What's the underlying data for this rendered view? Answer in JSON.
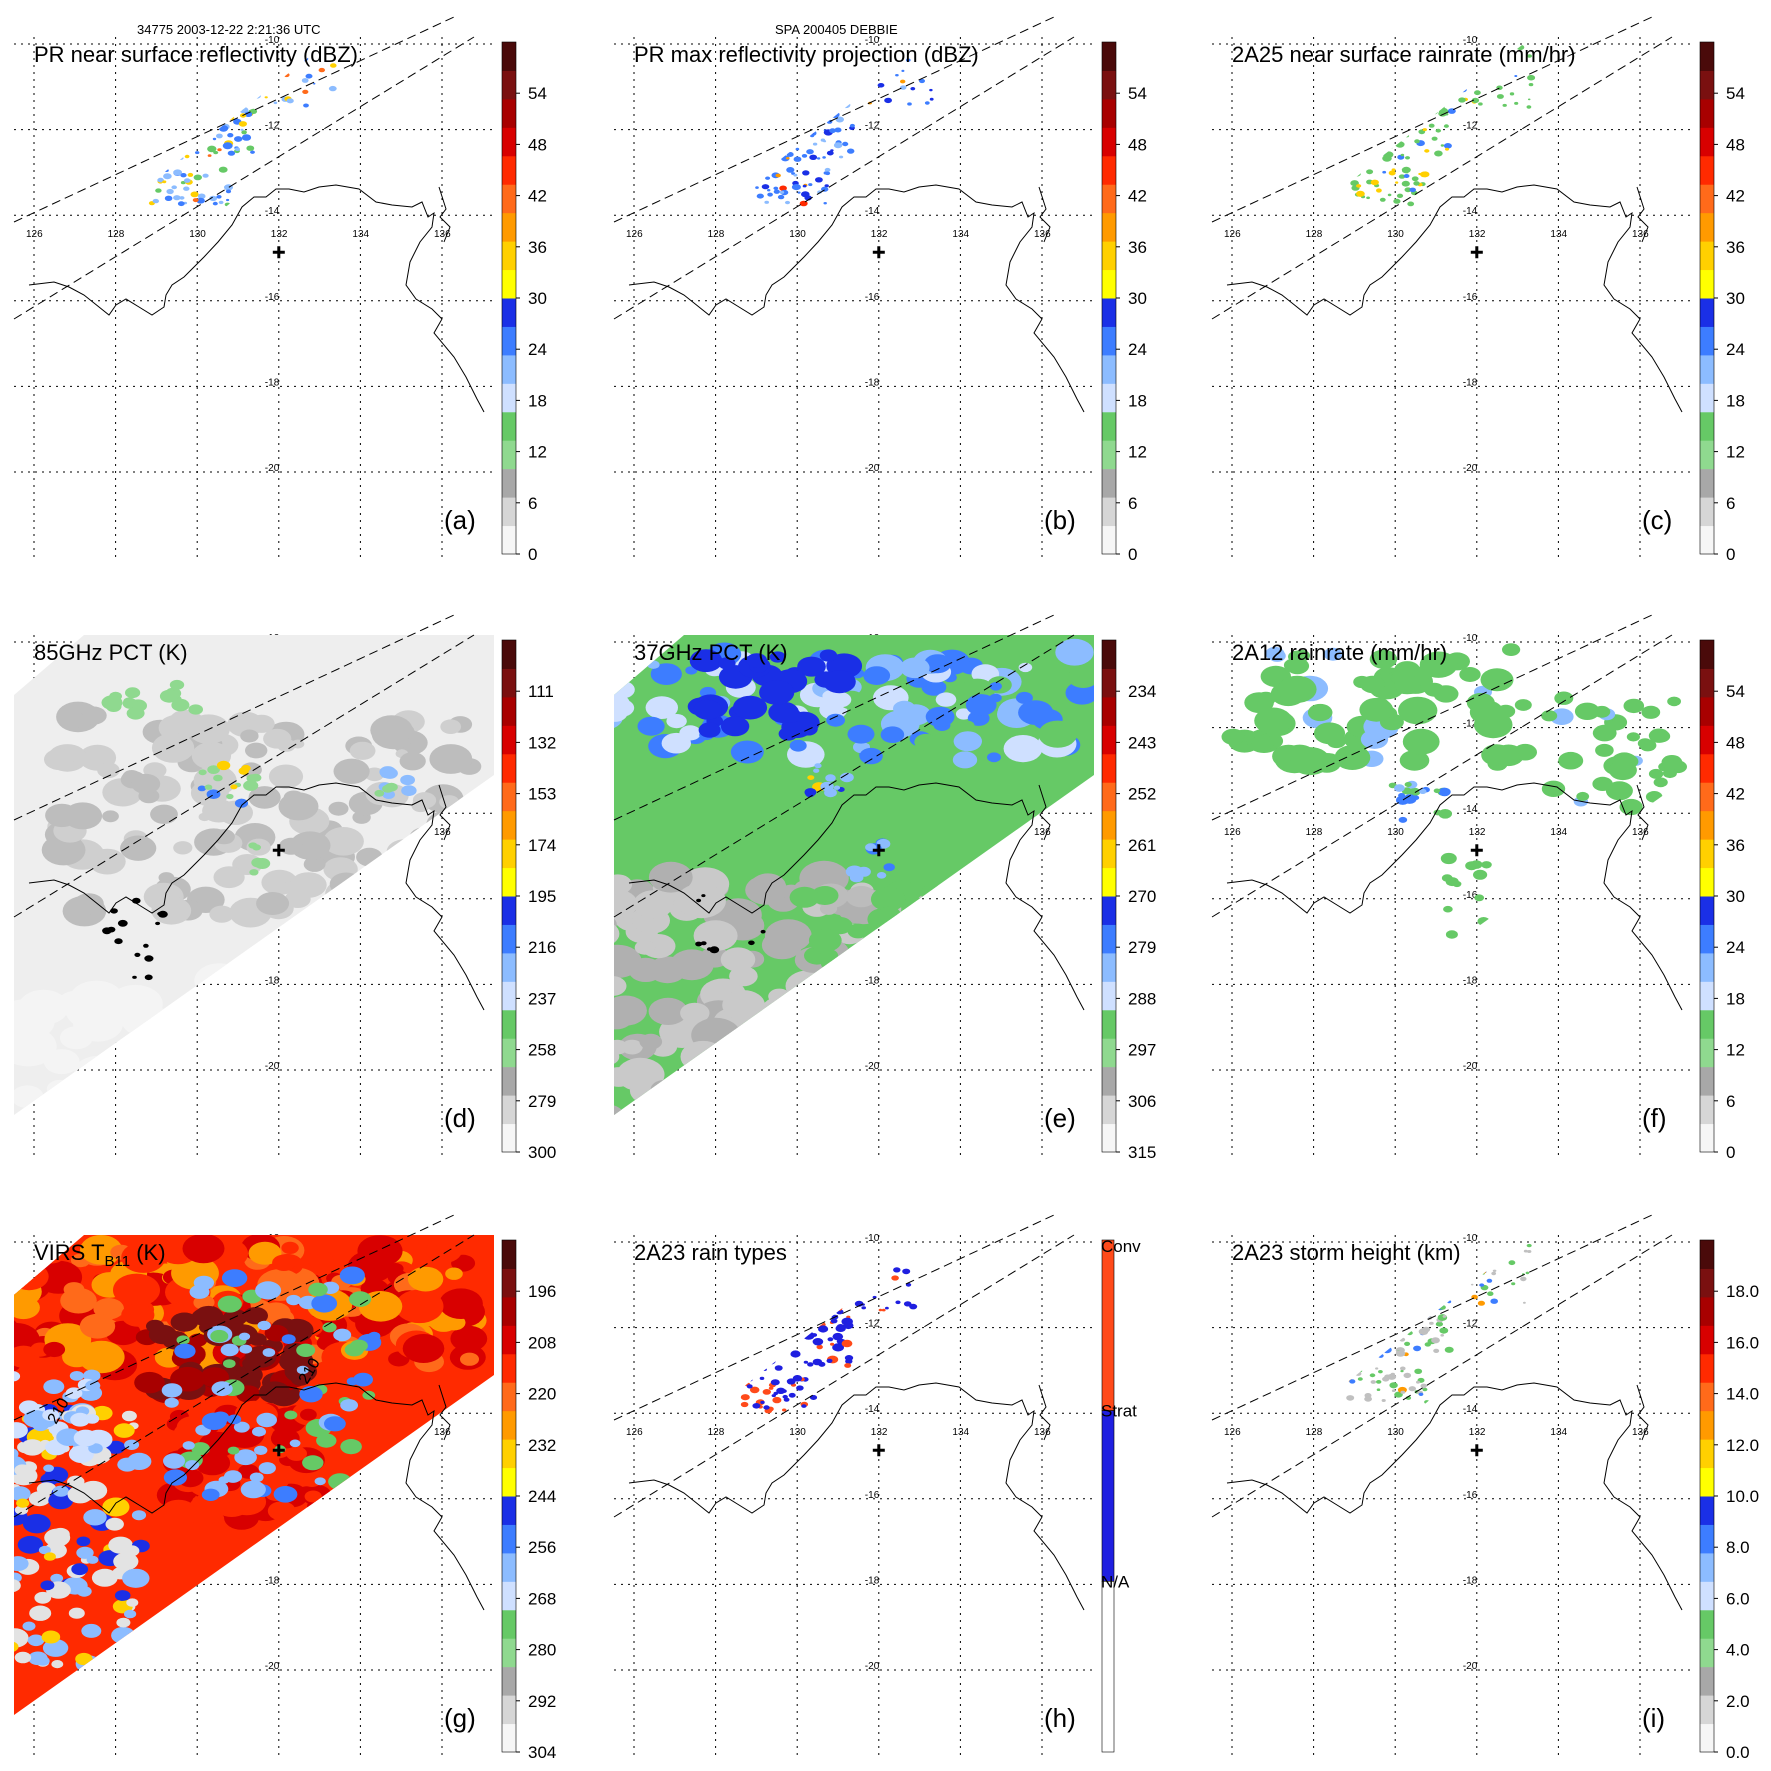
{
  "header": {
    "left": "34775 2003-12-22 2:21:36 UTC",
    "center": "SPA 200405 DEBBIE"
  },
  "chart_data": [
    {
      "id": "a",
      "type": "heatmap",
      "title": "PR near surface reflectivity (dBZ)",
      "panel_label": "(a)",
      "swath": "pr",
      "field": "pr_sfc",
      "colorbar": {
        "ticks": [
          "0",
          "6",
          "12",
          "18",
          "24",
          "30",
          "36",
          "42",
          "48",
          "54"
        ]
      },
      "lon_ticks": [
        "126",
        "128",
        "130",
        "132",
        "134",
        "136"
      ],
      "lat_ticks": [
        "-10",
        "-12",
        "-14",
        "-16",
        "-18",
        "-20"
      ]
    },
    {
      "id": "b",
      "type": "heatmap",
      "title": "PR max reflectivity projection (dBZ)",
      "panel_label": "(b)",
      "swath": "pr",
      "field": "pr_max",
      "colorbar": {
        "ticks": [
          "0",
          "6",
          "12",
          "18",
          "24",
          "30",
          "36",
          "42",
          "48",
          "54"
        ]
      },
      "lon_ticks": [
        "126",
        "128",
        "130",
        "132",
        "134",
        "136"
      ],
      "lat_ticks": [
        "-10",
        "-12",
        "-14",
        "-16",
        "-18",
        "-20"
      ]
    },
    {
      "id": "c",
      "type": "heatmap",
      "title": "2A25 near surface rainrate (mm/hr)",
      "panel_label": "(c)",
      "swath": "pr",
      "field": "rain25",
      "colorbar": {
        "ticks": [
          "0",
          "6",
          "12",
          "18",
          "24",
          "30",
          "36",
          "42",
          "48",
          "54"
        ]
      },
      "lon_ticks": [
        "126",
        "128",
        "130",
        "132",
        "134",
        "136"
      ],
      "lat_ticks": [
        "-10",
        "-12",
        "-14",
        "-16",
        "-18",
        "-20"
      ]
    },
    {
      "id": "d",
      "type": "heatmap",
      "title": "85GHz PCT (K)",
      "panel_label": "(d)",
      "swath": "tmi",
      "field": "pct85",
      "colorbar": {
        "ticks": [
          "300",
          "279",
          "258",
          "237",
          "216",
          "195",
          "174",
          "153",
          "132",
          "111"
        ]
      },
      "lon_ticks": [
        "126",
        "128",
        "130",
        "132",
        "134",
        "136"
      ],
      "lat_ticks": [
        "-10",
        "-12",
        "-14",
        "-16",
        "-18",
        "-20"
      ]
    },
    {
      "id": "e",
      "type": "heatmap",
      "title": "37GHz PCT (K)",
      "panel_label": "(e)",
      "swath": "tmi",
      "field": "pct37",
      "colorbar": {
        "ticks": [
          "315",
          "306",
          "297",
          "288",
          "279",
          "270",
          "261",
          "252",
          "243",
          "234"
        ]
      },
      "lon_ticks": [
        "126",
        "128",
        "130",
        "132",
        "134",
        "136"
      ],
      "lat_ticks": [
        "-10",
        "-12",
        "-14",
        "-16",
        "-18",
        "-20"
      ]
    },
    {
      "id": "f",
      "type": "heatmap",
      "title": "2A12 rainrate (mm/hr)",
      "panel_label": "(f)",
      "swath": "tmi",
      "field": "rain12",
      "colorbar": {
        "ticks": [
          "0",
          "6",
          "12",
          "18",
          "24",
          "30",
          "36",
          "42",
          "48",
          "54"
        ]
      },
      "lon_ticks": [
        "126",
        "128",
        "130",
        "132",
        "134",
        "136"
      ],
      "lat_ticks": [
        "-10",
        "-12",
        "-14",
        "-16",
        "-18",
        "-20"
      ]
    },
    {
      "id": "g",
      "type": "heatmap",
      "title": "VIRS T",
      "title_sub": "B11",
      "title_tail": " (K)",
      "panel_label": "(g)",
      "swath": "tmi",
      "field": "virs",
      "colorbar": {
        "ticks": [
          "304",
          "292",
          "280",
          "268",
          "256",
          "244",
          "232",
          "220",
          "208",
          "196"
        ]
      },
      "contour_labels": [
        "210",
        "210"
      ],
      "lon_ticks": [
        "126",
        "128",
        "130",
        "132",
        "134",
        "136"
      ],
      "lat_ticks": [
        "-10",
        "-12",
        "-14",
        "-16",
        "-18",
        "-20"
      ]
    },
    {
      "id": "h",
      "type": "heatmap",
      "title": "2A23 rain types",
      "panel_label": "(h)",
      "swath": "pr",
      "field": "raintype",
      "colorbar": {
        "ticks": [
          "N/A",
          "Strat",
          "Conv"
        ],
        "categorical": true
      },
      "lon_ticks": [
        "126",
        "128",
        "130",
        "132",
        "134",
        "136"
      ],
      "lat_ticks": [
        "-10",
        "-12",
        "-14",
        "-16",
        "-18",
        "-20"
      ]
    },
    {
      "id": "i",
      "type": "heatmap",
      "title": "2A23 storm height (km)",
      "panel_label": "(i)",
      "swath": "pr",
      "field": "height",
      "colorbar": {
        "ticks": [
          "0.0",
          "2.0",
          "4.0",
          "6.0",
          "8.0",
          "10.0",
          "12.0",
          "14.0",
          "16.0",
          "18.0"
        ]
      },
      "lon_ticks": [
        "126",
        "128",
        "130",
        "132",
        "134",
        "136"
      ],
      "lat_ticks": [
        "-10",
        "-12",
        "-14",
        "-16",
        "-18",
        "-20"
      ]
    }
  ],
  "colors": {
    "scale": [
      "#f6f6f6",
      "#d6d6d6",
      "#a8a8a8",
      "#8fd98f",
      "#66c966",
      "#cfe0ff",
      "#8cbcff",
      "#3d7dff",
      "#1a2fe6",
      "#ffff00",
      "#ffd000",
      "#ff9a00",
      "#ff6a1a",
      "#ff2a00",
      "#d80000",
      "#a80000",
      "#7a1010",
      "#4a0a0a"
    ],
    "rain_types": [
      "#ffffff",
      "#1f1fe0",
      "#ff4a1a"
    ]
  }
}
